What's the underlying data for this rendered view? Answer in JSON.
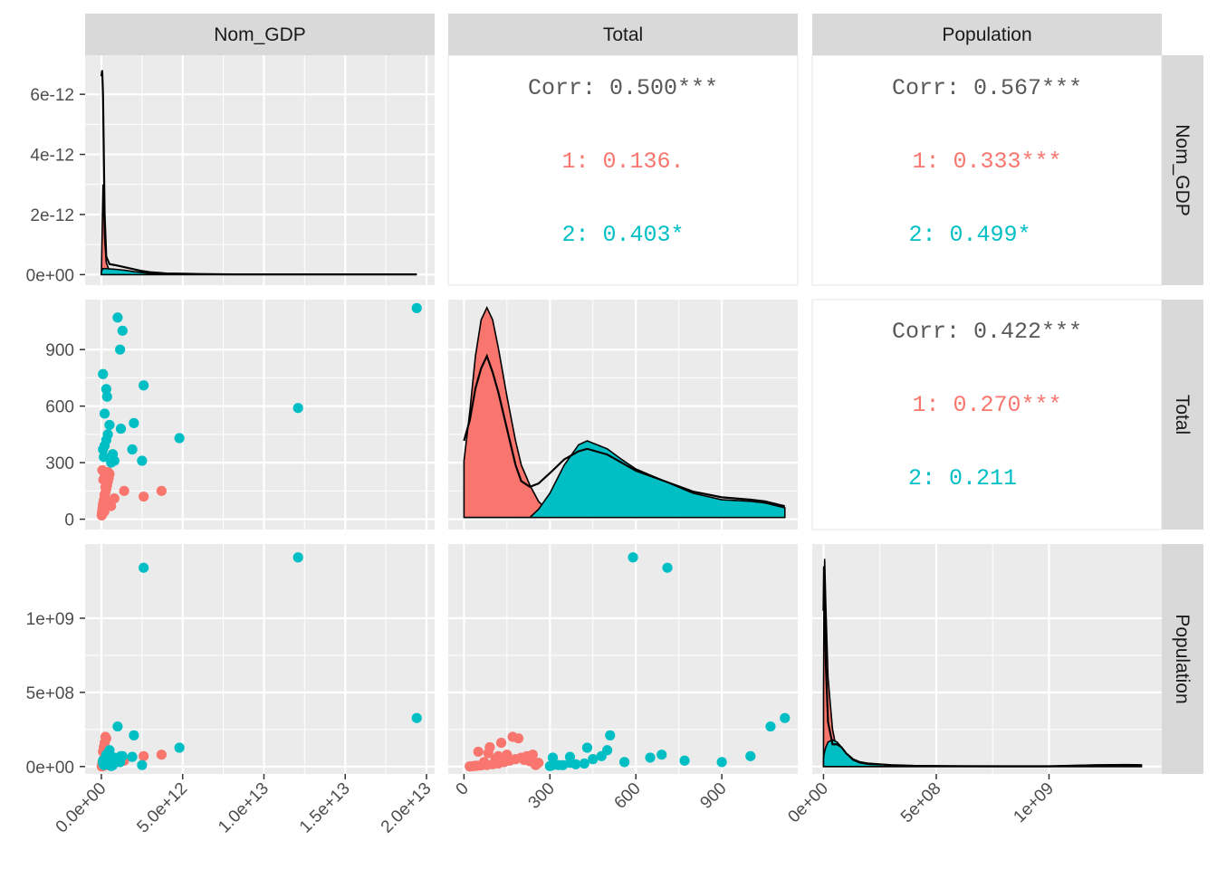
{
  "variables": [
    "Nom_GDP",
    "Total",
    "Population"
  ],
  "colors": {
    "panel_bg": "#ebebeb",
    "grid": "#ffffff",
    "strip_bg": "#d9d9d9",
    "group1": "#f8766d",
    "group2": "#00bfc4",
    "overall": "#000000",
    "corr_overall": "#595959"
  },
  "correlations": [
    {
      "pair": [
        "Nom_GDP",
        "Total"
      ],
      "overall": "Corr: 0.500***",
      "g1": "1: 0.136.",
      "g2": "2: 0.403*"
    },
    {
      "pair": [
        "Nom_GDP",
        "Population"
      ],
      "overall": "Corr: 0.567***",
      "g1": "1: 0.333***",
      "g2": "2: 0.499*"
    },
    {
      "pair": [
        "Total",
        "Population"
      ],
      "overall": "Corr: 0.422***",
      "g1": "1: 0.270***",
      "g2": "2: 0.211"
    }
  ],
  "axes": {
    "Nom_GDP": {
      "range": [
        -1000000000000.0,
        20500000000000.0
      ],
      "ticks": [
        0,
        5000000000000.0,
        10000000000000.0,
        15000000000000.0,
        20000000000000.0
      ],
      "labels": [
        "0.0e+00",
        "5.0e+12",
        "1.0e+13",
        "1.5e+13",
        "2.0e+13"
      ]
    },
    "Total": {
      "range": [
        -55,
        1165
      ],
      "ticks": [
        0,
        300,
        600,
        900
      ],
      "labels": [
        "0",
        "300",
        "600",
        "900"
      ]
    },
    "Population": {
      "range": [
        -50000000.0,
        1500000000.0
      ],
      "ticks": [
        0,
        500000000.0,
        1000000000.0
      ],
      "labels": [
        "0e+00",
        "5e+08",
        "1e+09"
      ]
    },
    "density_y": {
      "range": [
        -3.5e-13,
        7.3e-12
      ],
      "ticks": [
        0,
        2e-12,
        4e-12,
        6e-12
      ],
      "labels": [
        "0e+00",
        "2e-12",
        "4e-12",
        "6e-12"
      ]
    },
    "Total_density": {
      "range": [
        -0.00015,
        0.0027
      ]
    },
    "Population_density": {
      "range": [
        -1e-10,
        3e-09
      ]
    }
  },
  "chart_data": {
    "type": "scatter",
    "series": [
      {
        "name": "1",
        "points": [
          {
            "gdp": 30000000000.0,
            "total": 30,
            "pop": 2000000.0
          },
          {
            "gdp": 50000000000.0,
            "total": 45,
            "pop": 5000000.0
          },
          {
            "gdp": 80000000000.0,
            "total": 60,
            "pop": 8000000.0
          },
          {
            "gdp": 100000000000.0,
            "total": 80,
            "pop": 10000000.0
          },
          {
            "gdp": 150000000000.0,
            "total": 100,
            "pop": 15000000.0
          },
          {
            "gdp": 200000000000.0,
            "total": 120,
            "pop": 20000000.0
          },
          {
            "gdp": 250000000000.0,
            "total": 140,
            "pop": 30000000.0
          },
          {
            "gdp": 300000000000.0,
            "total": 160,
            "pop": 40000000.0
          },
          {
            "gdp": 350000000000.0,
            "total": 180,
            "pop": 50000000.0
          },
          {
            "gdp": 400000000000.0,
            "total": 200,
            "pop": 60000000.0
          },
          {
            "gdp": 450000000000.0,
            "total": 220,
            "pop": 70000000.0
          },
          {
            "gdp": 500000000000.0,
            "total": 240,
            "pop": 80000000.0
          },
          {
            "gdp": 100000000000.0,
            "total": 50,
            "pop": 100000000.0
          },
          {
            "gdp": 150000000000.0,
            "total": 90,
            "pop": 130000000.0
          },
          {
            "gdp": 200000000000.0,
            "total": 130,
            "pop": 160000000.0
          },
          {
            "gdp": 250000000000.0,
            "total": 170,
            "pop": 200000000.0
          },
          {
            "gdp": 300000000000.0,
            "total": 190,
            "pop": 190000000.0
          },
          {
            "gdp": 400000000000.0,
            "total": 250,
            "pop": 10000000.0
          },
          {
            "gdp": 600000000000.0,
            "total": 70,
            "pop": 30000000.0
          },
          {
            "gdp": 800000000000.0,
            "total": 110,
            "pop": 50000000.0
          },
          {
            "gdp": 1400000000000.0,
            "total": 150,
            "pop": 40000000.0
          },
          {
            "gdp": 2600000000000.0,
            "total": 120,
            "pop": 70000000.0
          },
          {
            "gdp": 3700000000000.0,
            "total": 150,
            "pop": 80000000.0
          },
          {
            "gdp": 20000000000.0,
            "total": 20,
            "pop": 1000000.0
          },
          {
            "gdp": 60000000000.0,
            "total": 260,
            "pop": 25000000.0
          },
          {
            "gdp": 120000000000.0,
            "total": 210,
            "pop": 45000000.0
          },
          {
            "gdp": 220000000000.0,
            "total": 230,
            "pop": 35000000.0
          },
          {
            "gdp": 180000000000.0,
            "total": 40,
            "pop": 6000000.0
          },
          {
            "gdp": 90000000000.0,
            "total": 65,
            "pop": 12000000.0
          },
          {
            "gdp": 320000000000.0,
            "total": 85,
            "pop": 90000000.0
          }
        ]
      },
      {
        "name": "2",
        "points": [
          {
            "gdp": 100000000000.0,
            "total": 770,
            "pop": 40000000.0
          },
          {
            "gdp": 300000000000.0,
            "total": 690,
            "pop": 80000000.0
          },
          {
            "gdp": 350000000000.0,
            "total": 650,
            "pop": 60000000.0
          },
          {
            "gdp": 200000000000.0,
            "total": 560,
            "pop": 30000000.0
          },
          {
            "gdp": 500000000000.0,
            "total": 500,
            "pop": 110000000.0
          },
          {
            "gdp": 400000000000.0,
            "total": 450,
            "pop": 50000000.0
          },
          {
            "gdp": 300000000000.0,
            "total": 420,
            "pop": 20000000.0
          },
          {
            "gdp": 200000000000.0,
            "total": 390,
            "pop": 15000000.0
          },
          {
            "gdp": 100000000000.0,
            "total": 370,
            "pop": 25000000.0
          },
          {
            "gdp": 150000000000.0,
            "total": 330,
            "pop": 10000000.0
          },
          {
            "gdp": 800000000000.0,
            "total": 310,
            "pop": 60000000.0
          },
          {
            "gdp": 1200000000000.0,
            "total": 480,
            "pop": 70000000.0
          },
          {
            "gdp": 1000000000000.0,
            "total": 1070,
            "pop": 270000000.0
          },
          {
            "gdp": 1300000000000.0,
            "total": 1000,
            "pop": 70000000.0
          },
          {
            "gdp": 1150000000000.0,
            "total": 900,
            "pop": 30000000.0
          },
          {
            "gdp": 2600000000000.0,
            "total": 710,
            "pop": 1340000000.0
          },
          {
            "gdp": 2000000000000.0,
            "total": 510,
            "pop": 210000000.0
          },
          {
            "gdp": 1900000000000.0,
            "total": 370,
            "pop": 65000000.0
          },
          {
            "gdp": 2500000000000.0,
            "total": 310,
            "pop": 10000000.0
          },
          {
            "gdp": 4800000000000.0,
            "total": 430,
            "pop": 127000000.0
          },
          {
            "gdp": 12100000000000.0,
            "total": 590,
            "pop": 1410000000.0
          },
          {
            "gdp": 19400000000000.0,
            "total": 1120,
            "pop": 327000000.0
          },
          {
            "gdp": 600000000000.0,
            "total": 300,
            "pop": 3000000.0
          },
          {
            "gdp": 700000000000.0,
            "total": 345,
            "pop": 9000000.0
          }
        ]
      }
    ],
    "densities": {
      "Nom_GDP": {
        "x": [
          0,
          50000000000.0,
          100000000000.0,
          200000000000.0,
          300000000000.0,
          500000000000.0,
          800000000000.0,
          1000000000000.0,
          1500000000000.0,
          2000000000000.0,
          2500000000000.0,
          3000000000000.0,
          3500000000000.0,
          4000000000000.0,
          5000000000000.0,
          6000000000000.0,
          8000000000000.0,
          10000000000000.0,
          12000000000000.0,
          15000000000000.0,
          18000000000000.0,
          19400000000000.0
        ],
        "g1": [
          0.0,
          1.5e-12,
          3e-12,
          1.2e-12,
          4e-13,
          1.2e-13,
          6e-14,
          4e-14,
          2e-14,
          1e-14,
          5e-15,
          0,
          0,
          0,
          0,
          0,
          0,
          0,
          0,
          0,
          0,
          0
        ],
        "g2": [
          1e-13,
          1.6e-13,
          2e-13,
          2e-13,
          2e-13,
          1.9e-13,
          1.8e-13,
          1.7e-13,
          1.4e-13,
          1e-13,
          7e-14,
          4e-14,
          2e-14,
          1e-14,
          5e-15,
          0,
          0,
          0,
          0,
          0,
          0,
          0
        ],
        "overall": [
          6.6e-12,
          6.8e-12,
          6e-12,
          2e-12,
          6e-13,
          3.5e-13,
          3.2e-13,
          3e-13,
          2.4e-13,
          1.8e-13,
          1.2e-13,
          8e-14,
          6e-14,
          4e-14,
          3e-14,
          2e-14,
          1e-14,
          1e-14,
          1e-14,
          1e-14,
          1e-14,
          1e-14
        ]
      },
      "Total": {
        "x": [
          0,
          20,
          40,
          60,
          80,
          100,
          120,
          150,
          180,
          200,
          230,
          260,
          300,
          350,
          400,
          430,
          500,
          550,
          600,
          700,
          800,
          900,
          1000,
          1050,
          1120
        ],
        "g1": [
          0.0007,
          0.0013,
          0.002,
          0.00245,
          0.0026,
          0.00245,
          0.0021,
          0.0015,
          0.00095,
          0.00065,
          0.0004,
          0.0002,
          5e-05,
          1e-05,
          0,
          0,
          0,
          0,
          0,
          0,
          0,
          0,
          0,
          0,
          0
        ],
        "g2": [
          0,
          0,
          0,
          0,
          0,
          0,
          0,
          0,
          0,
          0,
          0,
          0.0001,
          0.0003,
          0.00065,
          0.0009,
          0.00095,
          0.00085,
          0.00072,
          0.0006,
          0.00045,
          0.0003,
          0.00022,
          0.0002,
          0.00018,
          0.00012
        ],
        "overall": [
          0.00095,
          0.0012,
          0.0016,
          0.00185,
          0.002,
          0.0018,
          0.00155,
          0.0011,
          0.00065,
          0.00045,
          0.00038,
          0.00042,
          0.00055,
          0.00072,
          0.00082,
          0.00085,
          0.00078,
          0.00068,
          0.00058,
          0.00045,
          0.00032,
          0.00025,
          0.00022,
          0.0002,
          0.00014
        ]
      },
      "Population": {
        "x": [
          0,
          2000000.0,
          5000000.0,
          10000000.0,
          20000000.0,
          40000000.0,
          60000000.0,
          80000000.0,
          100000000.0,
          130000000.0,
          160000000.0,
          200000000.0,
          300000000.0,
          400000000.0,
          600000000.0,
          800000000.0,
          1000000000.0,
          1200000000.0,
          1340000000.0,
          1410000000.0
        ],
        "g1": [
          1e-09,
          2.2e-09,
          2.8e-09,
          2.2e-09,
          1.2e-09,
          5e-10,
          2e-10,
          1e-10,
          5e-11,
          2e-11,
          1e-11,
          0,
          0,
          0,
          0,
          0,
          0,
          0,
          0,
          0
        ],
        "g2": [
          1e-10,
          1.6e-10,
          2e-10,
          2.6e-10,
          3.3e-10,
          3.6e-10,
          3.3e-10,
          2.6e-10,
          1.8e-10,
          9e-11,
          5e-11,
          3e-11,
          2e-11,
          1e-11,
          5e-12,
          4e-12,
          4e-12,
          2e-11,
          2.5e-11,
          2e-11
        ],
        "overall": [
          2.1e-09,
          2.7e-09,
          2.5e-09,
          1.4e-09,
          6e-10,
          3e-10,
          3e-10,
          2.6e-10,
          1.8e-10,
          1e-10,
          6e-11,
          4e-11,
          2e-11,
          1e-11,
          5e-12,
          4e-12,
          4e-12,
          1.8e-11,
          2.2e-11,
          2e-11
        ]
      }
    }
  }
}
